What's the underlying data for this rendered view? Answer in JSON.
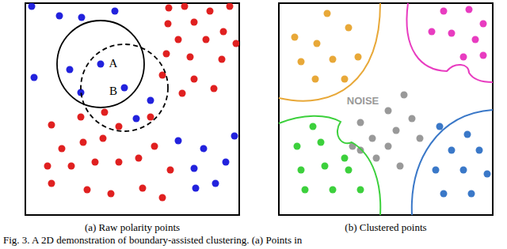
{
  "caption": "Fig. 3. A 2D demonstration of boundary-assisted clustering. (a) Points in",
  "chart_data": [
    {
      "type": "scatter",
      "title": "(a) Raw polarity points",
      "xlim": [
        0,
        270
      ],
      "ylim": [
        0,
        268
      ],
      "tick_labels": false,
      "series": [
        {
          "color": "#2222dd",
          "x": [
            8,
            43,
            71,
            113,
            11,
            56,
            95,
            125,
            70,
            158,
            140,
            193,
            225,
            213,
            253,
            240,
            215,
            264
          ],
          "values": [
            264,
            252,
            250,
            258,
            174,
            184,
            191,
            161,
            155,
            145,
            122,
            94,
            84,
            59,
            67,
            40,
            34,
            100
          ]
        },
        {
          "color": "#e02020",
          "x": [
            181,
            201,
            233,
            258,
            180,
            213,
            250,
            193,
            228,
            266,
            178,
            208,
            248,
            173,
            213,
            238,
            198,
            100,
            70,
            158,
            118,
            33,
            46,
            73,
            98,
            28,
            58,
            88,
            118,
            163,
            143,
            183,
            33,
            78,
            108,
            148,
            173
          ],
          "values": [
            262,
            264,
            258,
            264,
            242,
            244,
            232,
            222,
            222,
            217,
            204,
            200,
            197,
            177,
            172,
            160,
            154,
            130,
            124,
            124,
            112,
            114,
            84,
            92,
            97,
            62,
            62,
            67,
            67,
            87,
            72,
            57,
            40,
            32,
            27,
            34,
            22
          ]
        }
      ],
      "annotations": [
        {
          "text": "A",
          "x": 111,
          "y": 192,
          "color": "#000000"
        },
        {
          "text": "B",
          "x": 111,
          "y": 157,
          "color": "#000000"
        }
      ],
      "circles": [
        {
          "x": 95,
          "y": 191,
          "line_style": "solid"
        },
        {
          "x": 125,
          "y": 161,
          "line_style": "dashed"
        }
      ]
    },
    {
      "type": "scatter",
      "title": "(b) Clustered points",
      "xlim": [
        0,
        270
      ],
      "ylim": [
        0,
        268
      ],
      "tick_labels": false,
      "series": [
        {
          "color": "#e8a838",
          "x": [
            20,
            61,
            88,
            48,
            28,
            68,
            100,
            46,
            83
          ],
          "values": [
            225,
            255,
            237,
            217,
            194,
            197,
            200,
            172,
            172
          ]
        },
        {
          "color": "#e83cc0",
          "x": [
            208,
            240,
            258,
            218,
            248,
            193,
            233,
            258
          ],
          "values": [
            258,
            260,
            242,
            230,
            222,
            232,
            200,
            202
          ]
        },
        {
          "color": "#3cd03c",
          "x": [
            23,
            53,
            83,
            28,
            58,
            88,
            33,
            68,
            103,
            43
          ],
          "values": [
            87,
            92,
            72,
            57,
            62,
            57,
            32,
            32,
            32,
            112
          ]
        },
        {
          "color": "#3a78c8",
          "x": [
            203,
            238,
            218,
            253,
            198,
            233,
            263,
            208,
            243
          ],
          "values": [
            112,
            102,
            82,
            82,
            57,
            57,
            52,
            27,
            27
          ]
        },
        {
          "color": "#999999",
          "x": [
            103,
            118,
            93,
            138,
            158,
            168,
            148,
            123,
            103,
            178,
            138,
            153
          ],
          "values": [
            117,
            97,
            87,
            132,
            152,
            122,
            107,
            72,
            82,
            97,
            87,
            62
          ]
        }
      ],
      "annotations": [
        {
          "text": "NOISE",
          "x": 106,
          "y": 145,
          "color": "#999999"
        }
      ]
    }
  ]
}
